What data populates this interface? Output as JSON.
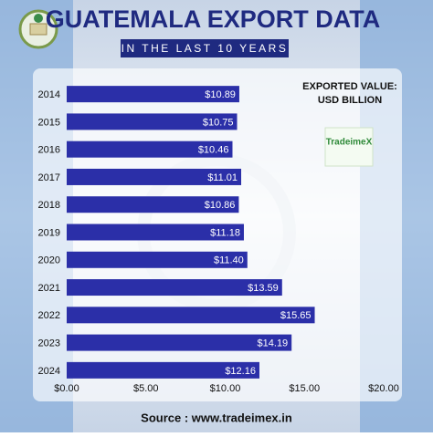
{
  "chart_data": {
    "type": "bar",
    "orientation": "horizontal",
    "title": "GUATEMALA EXPORT DATA",
    "subtitle": "IN THE LAST 10 YEARS",
    "annotation": [
      "EXPORTED VALUE:",
      "USD BILLION"
    ],
    "logo": "TradeimeX",
    "source": "Source : www.tradeimex.in",
    "categories": [
      "2014",
      "2015",
      "2016",
      "2017",
      "2018",
      "2019",
      "2020",
      "2021",
      "2022",
      "2023",
      "2024"
    ],
    "values": [
      10.89,
      10.75,
      10.46,
      11.01,
      10.86,
      11.18,
      11.4,
      13.59,
      15.65,
      14.19,
      12.16
    ],
    "value_labels": [
      "$10.89",
      "$10.75",
      "$10.46",
      "$11.01",
      "$10.86",
      "$11.18",
      "$11.40",
      "$13.59",
      "$15.65",
      "$14.19",
      "$12.16"
    ],
    "color": "#2b2fa8",
    "xlim": [
      0,
      20
    ],
    "xticks": [
      {
        "value": 0,
        "label": "$0.00"
      },
      {
        "value": 5,
        "label": "$5.00"
      },
      {
        "value": 10,
        "label": "$10.00"
      },
      {
        "value": 15,
        "label": "$15.00"
      },
      {
        "value": 20,
        "label": "$20.00"
      }
    ],
    "grid": false
  }
}
